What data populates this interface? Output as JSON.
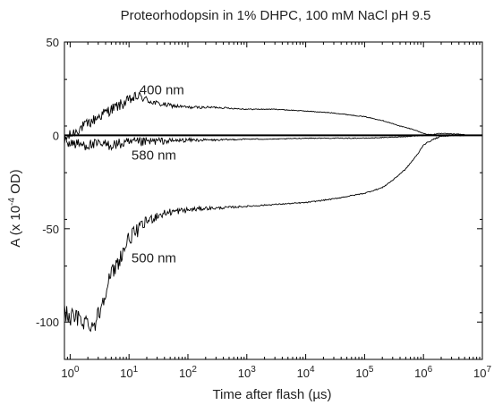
{
  "chart_data": {
    "type": "line",
    "title": "Proteorhodopsin in 1% DHPC, 100 mM NaCl pH 9.5",
    "xlabel": "Time after flash (µs)",
    "ylabel": {
      "prefix": "A (x 10",
      "exponent": "-4",
      "suffix": " OD)"
    },
    "x_scale": "log",
    "xlim": [
      0.8,
      10000000
    ],
    "ylim": [
      -120,
      50
    ],
    "x_ticks": [
      {
        "value": 1,
        "base": "10",
        "exp": "0"
      },
      {
        "value": 10,
        "base": "10",
        "exp": "1"
      },
      {
        "value": 100,
        "base": "10",
        "exp": "2"
      },
      {
        "value": 1000,
        "base": "10",
        "exp": "3"
      },
      {
        "value": 10000,
        "base": "10",
        "exp": "4"
      },
      {
        "value": 100000,
        "base": "10",
        "exp": "5"
      },
      {
        "value": 1000000,
        "base": "10",
        "exp": "6"
      },
      {
        "value": 10000000,
        "base": "10",
        "exp": "7"
      }
    ],
    "y_ticks": [
      {
        "value": 50,
        "label": "50"
      },
      {
        "value": 0,
        "label": "0"
      },
      {
        "value": -50,
        "label": "-50"
      },
      {
        "value": -100,
        "label": "-100"
      }
    ],
    "zero_line": true,
    "grid": false,
    "series": [
      {
        "name": "400 nm",
        "x": [
          0.8,
          1,
          1.5,
          2,
          3,
          5,
          8,
          12,
          15,
          20,
          30,
          50,
          100,
          300,
          1000,
          3000,
          10000,
          30000,
          100000,
          200000,
          400000,
          700000,
          1000000,
          1500000,
          2000000,
          3000000,
          5000000
        ],
        "y": [
          -2,
          0,
          4,
          6,
          10,
          14,
          17,
          20,
          21,
          19,
          17,
          16,
          15,
          15,
          14,
          14,
          13,
          12,
          10,
          8,
          5,
          3,
          1,
          0,
          0,
          0,
          0
        ],
        "noise": [
          3,
          3,
          3,
          3,
          3,
          3,
          3,
          3,
          2.5,
          2,
          1.5,
          1.2,
          0.8,
          0.5,
          0.3,
          0.2,
          0.2,
          0.2,
          0.2,
          0.2,
          0.2,
          0.2,
          0.2,
          0.3,
          0.3,
          0.3,
          0.3
        ]
      },
      {
        "name": "580 nm",
        "x": [
          0.8,
          1,
          1.5,
          2,
          3,
          5,
          8,
          12,
          20,
          30,
          50,
          100,
          300,
          1000,
          3000,
          10000,
          30000,
          100000,
          300000,
          600000,
          1000000,
          2000000,
          5000000
        ],
        "y": [
          -3,
          -4,
          -5,
          -5,
          -5,
          -5,
          -4.5,
          -4,
          -3.5,
          -3,
          -3,
          -2.5,
          -2.5,
          -2,
          -2,
          -1.5,
          -1.5,
          -1.5,
          -1,
          -0.5,
          0,
          1,
          0.5
        ],
        "noise": [
          3,
          3,
          3,
          3,
          3,
          3,
          3,
          3,
          2.5,
          2,
          1.5,
          1,
          0.5,
          0.3,
          0.2,
          0.2,
          0.2,
          0.2,
          0.2,
          0.2,
          0.2,
          0.2,
          0.2
        ]
      },
      {
        "name": "500 nm",
        "x": [
          0.8,
          1,
          1.3,
          1.6,
          2,
          2.5,
          3,
          3.5,
          4,
          5,
          6,
          8,
          10,
          15,
          20,
          30,
          50,
          100,
          200,
          300,
          1000,
          3000,
          10000,
          30000,
          100000,
          200000,
          300000,
          500000,
          800000,
          1000000,
          1500000,
          2000000,
          3000000,
          5000000
        ],
        "y": [
          -95,
          -97,
          -98,
          -99,
          -100,
          -102,
          -96,
          -90,
          -82,
          -75,
          -70,
          -62,
          -55,
          -50,
          -46,
          -43,
          -41,
          -40,
          -39,
          -39,
          -38,
          -37,
          -36,
          -34,
          -31,
          -28,
          -24,
          -18,
          -10,
          -5,
          -2,
          -0.5,
          0,
          0
        ],
        "noise": [
          5,
          5,
          5,
          5,
          5,
          5,
          5,
          5,
          5,
          5,
          5,
          4,
          4,
          3.5,
          3,
          2.5,
          2,
          1.5,
          1,
          0.8,
          0.4,
          0.3,
          0.3,
          0.3,
          0.3,
          0.3,
          0.3,
          0.3,
          0.3,
          0.3,
          0.3,
          0.3,
          0.3,
          0.3
        ]
      }
    ],
    "annotations": [
      {
        "text": "400 nm",
        "x": 15,
        "y": 22
      },
      {
        "text": "580 nm",
        "x": 11,
        "y": -13
      },
      {
        "text": "500 nm",
        "x": 11,
        "y": -68
      }
    ]
  }
}
